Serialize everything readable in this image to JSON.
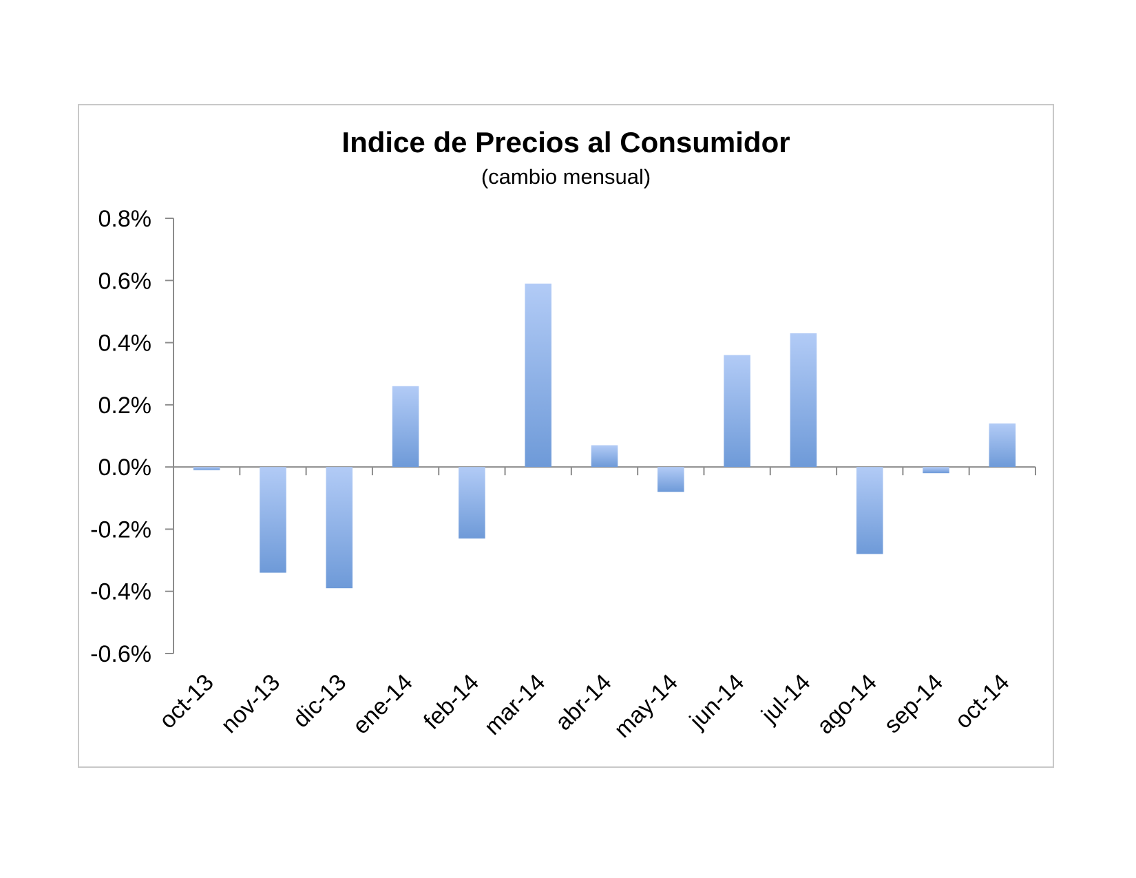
{
  "colors": {
    "bar_top": "#b2cbf6",
    "bar_bottom": "#6e9ad8",
    "axis": "#8c8c8c",
    "frame": "#c8c8c8"
  },
  "chart_data": {
    "type": "bar",
    "title": "Indice de Precios al Consumidor",
    "subtitle": "(cambio mensual)",
    "xlabel": "",
    "ylabel": "",
    "ylim": [
      -0.6,
      0.8
    ],
    "yticks": [
      0.8,
      0.6,
      0.4,
      0.2,
      0.0,
      -0.2,
      -0.4,
      -0.6
    ],
    "ytick_labels": [
      "0.8%",
      "0.6%",
      "0.4%",
      "0.2%",
      "0.0%",
      "-0.2%",
      "-0.4%",
      "-0.6%"
    ],
    "grid": false,
    "legend": "none",
    "categories": [
      "oct-13",
      "nov-13",
      "dic-13",
      "ene-14",
      "feb-14",
      "mar-14",
      "abr-14",
      "may-14",
      "jun-14",
      "jul-14",
      "ago-14",
      "sep-14",
      "oct-14"
    ],
    "values": [
      -0.01,
      -0.34,
      -0.39,
      0.26,
      -0.23,
      0.59,
      0.07,
      -0.08,
      0.36,
      0.43,
      -0.28,
      -0.02,
      0.14
    ]
  }
}
